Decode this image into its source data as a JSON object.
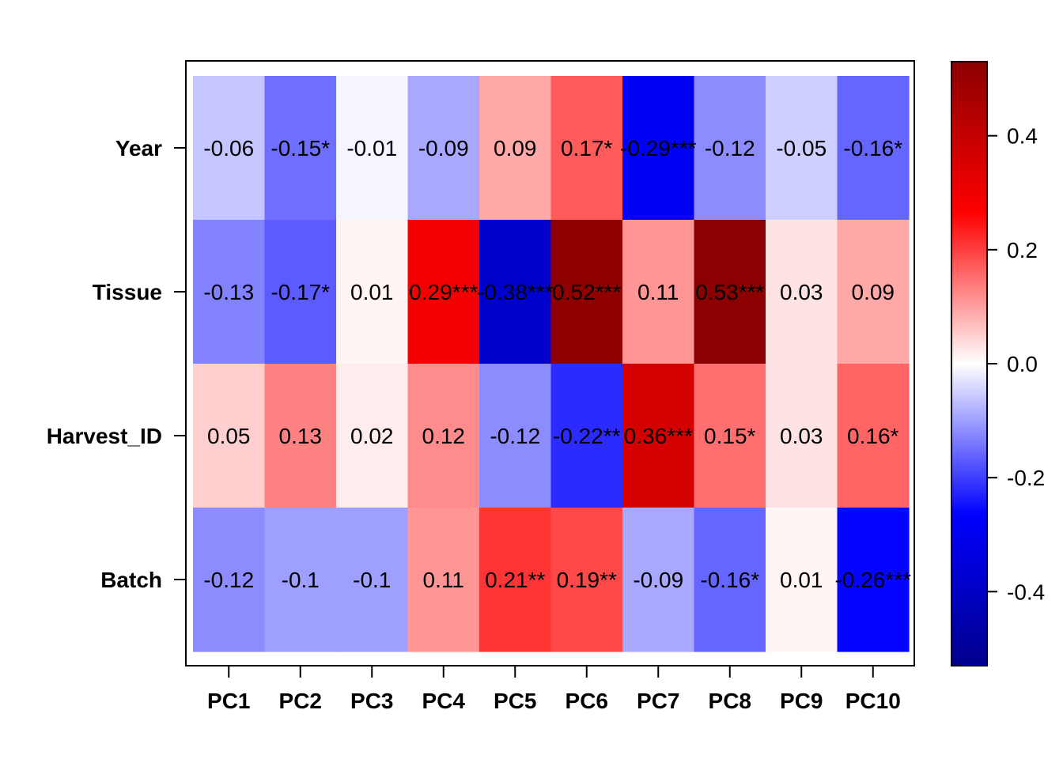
{
  "chart_data": {
    "type": "heatmap",
    "title": "",
    "xlabel": "",
    "ylabel": "",
    "x_categories": [
      "PC1",
      "PC2",
      "PC3",
      "PC4",
      "PC5",
      "PC6",
      "PC7",
      "PC8",
      "PC9",
      "PC10"
    ],
    "y_categories": [
      "Year",
      "Tissue",
      "Harvest_ID",
      "Batch"
    ],
    "values": [
      [
        -0.06,
        -0.15,
        -0.01,
        -0.09,
        0.09,
        0.17,
        -0.29,
        -0.12,
        -0.05,
        -0.16
      ],
      [
        -0.13,
        -0.17,
        0.01,
        0.29,
        -0.38,
        0.52,
        0.11,
        0.53,
        0.03,
        0.09
      ],
      [
        0.05,
        0.13,
        0.02,
        0.12,
        -0.12,
        -0.22,
        0.36,
        0.15,
        0.03,
        0.16
      ],
      [
        -0.12,
        -0.1,
        -0.1,
        0.11,
        0.21,
        0.19,
        -0.09,
        -0.16,
        0.01,
        -0.26
      ]
    ],
    "labels": [
      [
        "-0.06",
        "-0.15*",
        "-0.01",
        "-0.09",
        "0.09",
        "0.17*",
        "-0.29***",
        "-0.12",
        "-0.05",
        "-0.16*"
      ],
      [
        "-0.13",
        "-0.17*",
        "0.01",
        "0.29***",
        "-0.38***",
        "0.52***",
        "0.11",
        "0.53***",
        "0.03",
        "0.09"
      ],
      [
        "0.05",
        "0.13",
        "0.02",
        "0.12",
        "-0.12",
        "-0.22**",
        "0.36***",
        "0.15*",
        "0.03",
        "0.16*"
      ],
      [
        "-0.12",
        "-0.1",
        "-0.1",
        "0.11",
        "0.21**",
        "0.19**",
        "-0.09",
        "-0.16*",
        "0.01",
        "-0.26***"
      ]
    ],
    "colorbar": {
      "range": [
        -0.53,
        0.53
      ],
      "ticks": [
        0.4,
        0.2,
        0.0,
        -0.2,
        -0.4
      ],
      "tick_labels": [
        "0.4",
        "0.2",
        "0.0",
        "-0.2",
        "-0.4"
      ],
      "colors": [
        "#00008b",
        "#0000ff",
        "#ffffff",
        "#ff0000",
        "#8b0000"
      ]
    }
  }
}
